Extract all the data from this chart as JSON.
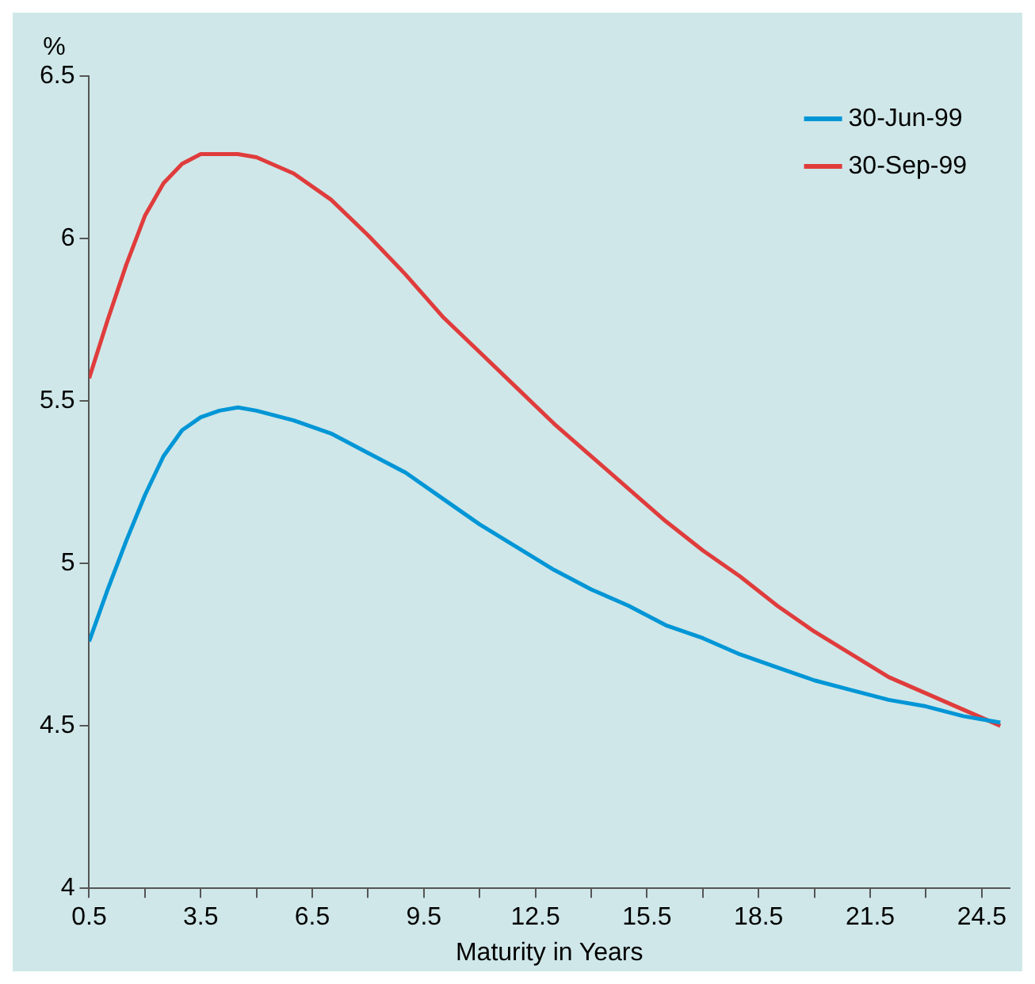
{
  "chart_data": {
    "type": "line",
    "xlabel": "Maturity in Years",
    "ylabel": "%",
    "x": [
      0.5,
      1,
      1.5,
      2,
      2.5,
      3,
      3.5,
      4,
      4.5,
      5,
      6,
      7,
      8,
      9,
      10,
      11,
      12,
      13,
      14,
      15,
      16,
      17,
      18,
      19,
      20,
      21,
      22,
      23,
      24,
      25
    ],
    "series": [
      {
        "name": "30-Jun-99",
        "color": "#0096d6",
        "values": [
          4.76,
          4.92,
          5.07,
          5.21,
          5.33,
          5.41,
          5.45,
          5.47,
          5.48,
          5.47,
          5.44,
          5.4,
          5.34,
          5.28,
          5.2,
          5.12,
          5.05,
          4.98,
          4.92,
          4.87,
          4.81,
          4.77,
          4.72,
          4.68,
          4.64,
          4.61,
          4.58,
          4.56,
          4.53,
          4.51
        ]
      },
      {
        "name": "30-Sep-99",
        "color": "#e03c3c",
        "values": [
          5.57,
          5.75,
          5.92,
          6.07,
          6.17,
          6.23,
          6.26,
          6.26,
          6.26,
          6.25,
          6.2,
          6.12,
          6.01,
          5.89,
          5.76,
          5.65,
          5.54,
          5.43,
          5.33,
          5.23,
          5.13,
          5.04,
          4.96,
          4.87,
          4.79,
          4.72,
          4.65,
          4.6,
          4.55,
          4.5
        ]
      }
    ],
    "xlim": [
      0.5,
      25.25
    ],
    "xticks": [
      0.5,
      {
        "value": 2,
        "label": null
      },
      3.5,
      {
        "value": 5,
        "label": null
      },
      6.5,
      {
        "value": 8,
        "label": null
      },
      9.5,
      {
        "value": 11,
        "label": null
      },
      12.5,
      {
        "value": 14,
        "label": null
      },
      15.5,
      {
        "value": 17,
        "label": null
      },
      18.5,
      {
        "value": 20,
        "label": null
      },
      21.5,
      {
        "value": 23,
        "label": null
      },
      24.5
    ],
    "ylim": [
      4,
      6.5
    ],
    "yticks": [
      4,
      4.5,
      5,
      5.5,
      6,
      6.5
    ],
    "grid": false,
    "legend": "top right",
    "marker": "none",
    "line_style": "solid"
  }
}
